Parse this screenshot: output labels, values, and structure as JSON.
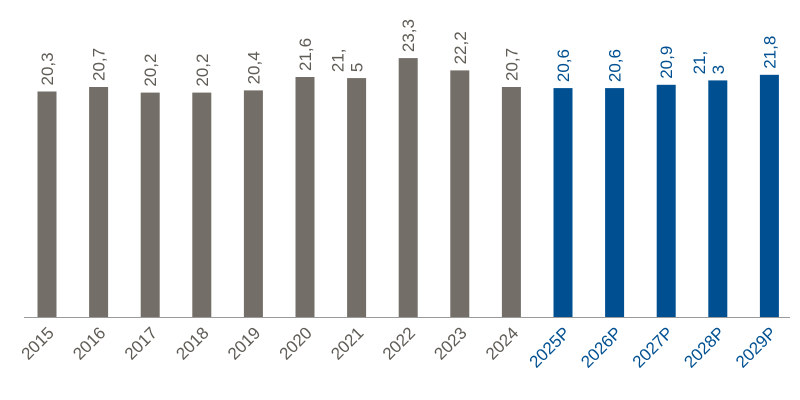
{
  "chart_data": {
    "type": "bar",
    "categories": [
      "2015",
      "2016",
      "2017",
      "2018",
      "2019",
      "2020",
      "2021",
      "2022",
      "2023",
      "2024",
      "2025P",
      "2026P",
      "2027P",
      "2028P",
      "2029P"
    ],
    "values": [
      20.3,
      20.7,
      20.2,
      20.2,
      20.4,
      21.6,
      21.5,
      23.3,
      22.2,
      20.7,
      20.6,
      20.6,
      20.9,
      21.3,
      21.8
    ],
    "value_labels": [
      [
        "20,3"
      ],
      [
        "20,7"
      ],
      [
        "20,2"
      ],
      [
        "20,2"
      ],
      [
        "20,4"
      ],
      [
        "21,6"
      ],
      [
        "21,",
        "5"
      ],
      [
        "23,3"
      ],
      [
        "22,2"
      ],
      [
        "20,7"
      ],
      [
        "20,6"
      ],
      [
        "20,6"
      ],
      [
        "20,9"
      ],
      [
        "21,",
        "3"
      ],
      [
        "21,8"
      ]
    ],
    "forecast": [
      false,
      false,
      false,
      false,
      false,
      false,
      false,
      false,
      false,
      false,
      true,
      true,
      true,
      true,
      true
    ],
    "colors": {
      "actual": "#736f68",
      "forecast": "#005091",
      "actual_text": "#5f5b55",
      "forecast_text": "#005091",
      "axis": "#9a9a9a"
    },
    "title": "",
    "xlabel": "",
    "ylabel": "",
    "grid": false
  }
}
